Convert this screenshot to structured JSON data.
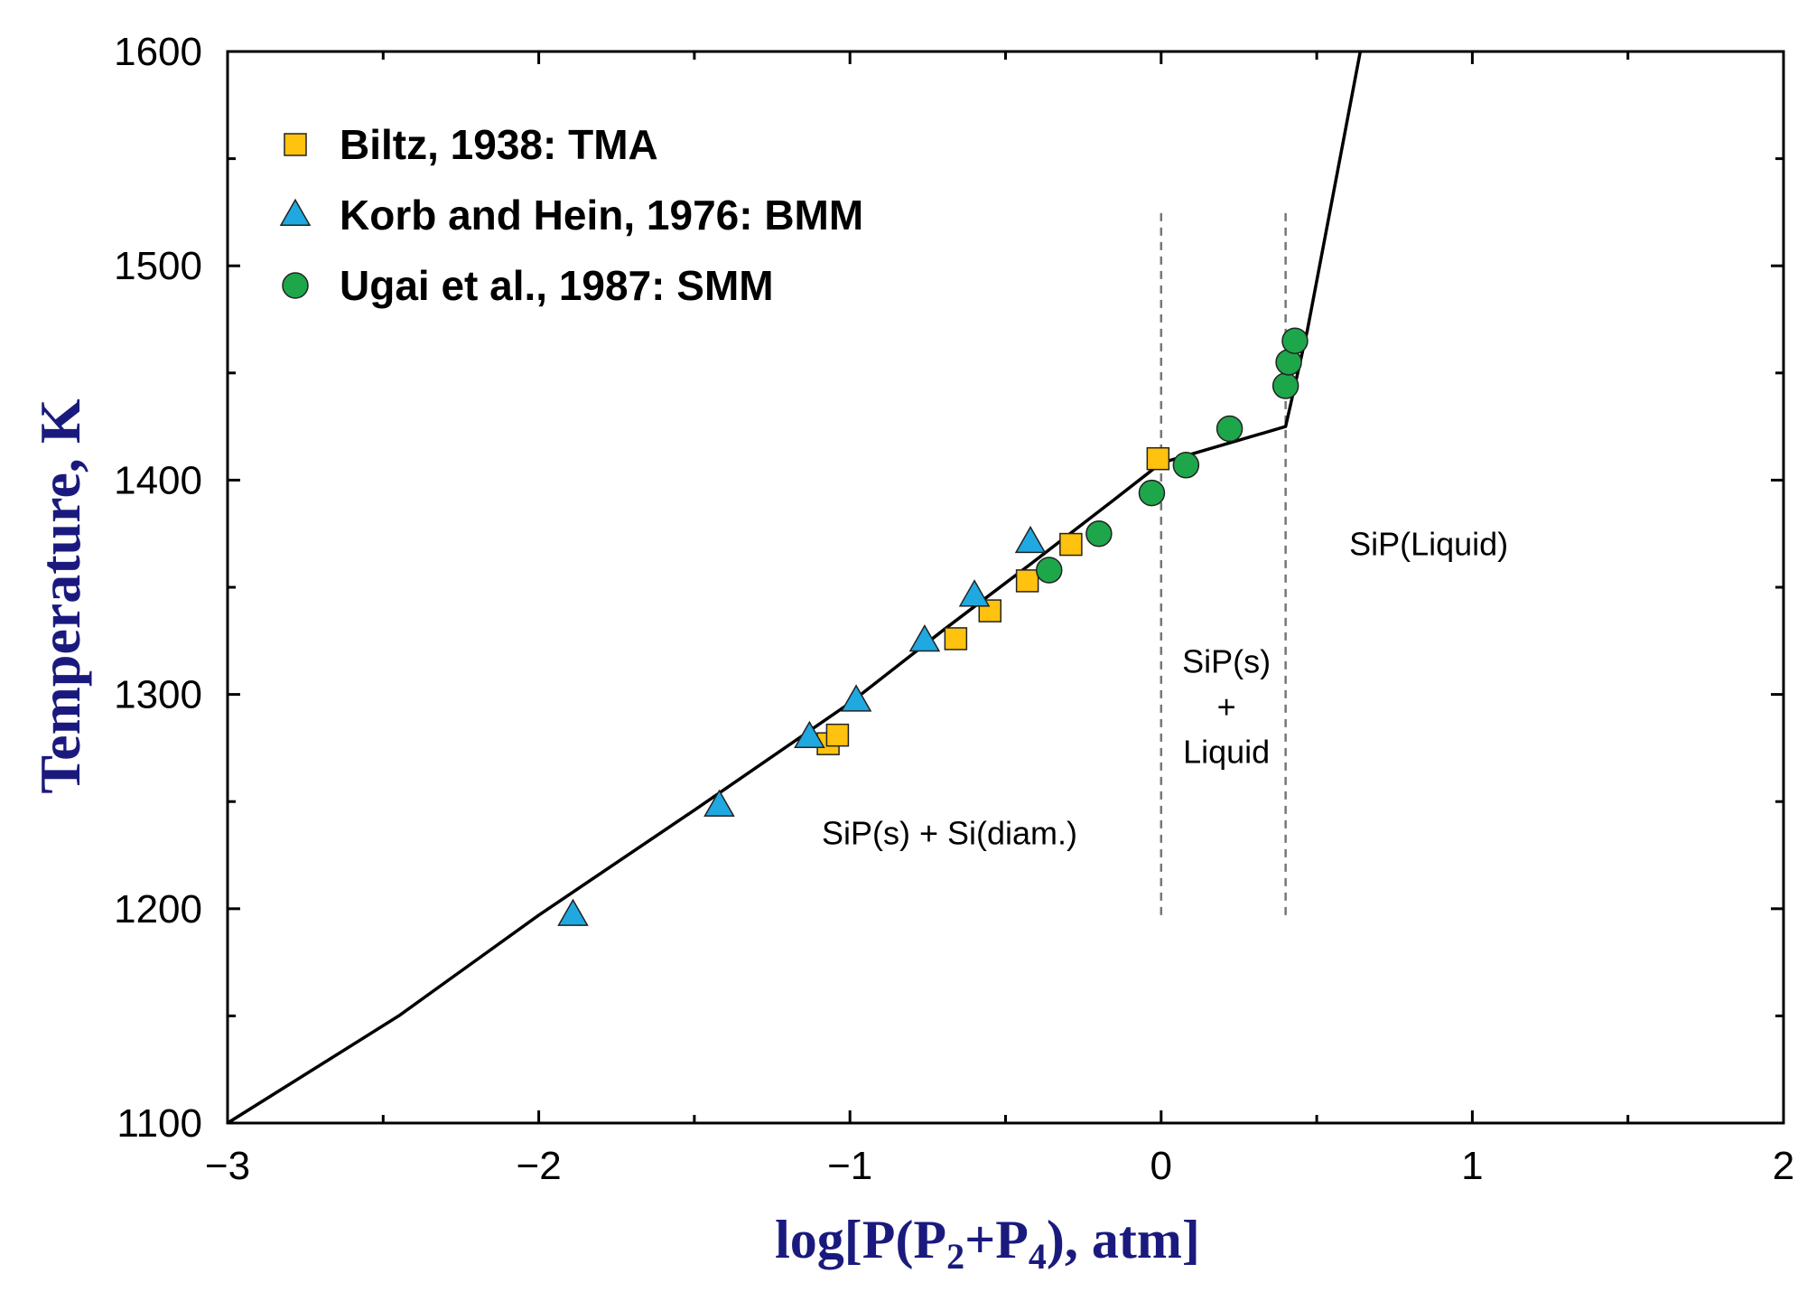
{
  "chart_data": {
    "type": "scatter",
    "title": "",
    "xlabel": {
      "prefix": "log[P(P",
      "sub1": "2",
      "middle": "+P",
      "sub2": "4",
      "suffix": "), atm]"
    },
    "ylabel": "Temperature, K",
    "xlim": [
      -3,
      2
    ],
    "ylim": [
      1100,
      1600
    ],
    "x_ticks": [
      -3,
      -2,
      -1,
      0,
      1,
      2
    ],
    "x_tick_labels": [
      "−3",
      "−2",
      "−1",
      "0",
      "1",
      "2"
    ],
    "y_ticks": [
      1100,
      1200,
      1300,
      1400,
      1500,
      1600
    ],
    "y_tick_labels": [
      "1100",
      "1200",
      "1300",
      "1400",
      "1500",
      "1600"
    ],
    "legend_position": "top-left",
    "colors": {
      "square": "#FFC20E",
      "triangle": "#1FA9E0",
      "circle": "#1EA64A",
      "axis_title": "#1a1a7e"
    },
    "series": [
      {
        "name": "Biltz, 1938: TMA",
        "marker": "square",
        "points": [
          [
            -1.07,
            1277
          ],
          [
            -1.04,
            1281
          ],
          [
            -0.66,
            1326
          ],
          [
            -0.55,
            1339
          ],
          [
            -0.43,
            1353
          ],
          [
            -0.29,
            1370
          ],
          [
            -0.01,
            1410
          ]
        ]
      },
      {
        "name": "Korb and Hein, 1976: BMM",
        "marker": "triangle",
        "points": [
          [
            -1.89,
            1197
          ],
          [
            -1.42,
            1248
          ],
          [
            -1.13,
            1280
          ],
          [
            -0.98,
            1297
          ],
          [
            -0.76,
            1325
          ],
          [
            -0.6,
            1346
          ],
          [
            -0.42,
            1371
          ]
        ]
      },
      {
        "name": "Ugai et al., 1987: SMM",
        "marker": "circle",
        "points": [
          [
            -0.36,
            1358
          ],
          [
            -0.2,
            1375
          ],
          [
            -0.03,
            1394
          ],
          [
            0.08,
            1407
          ],
          [
            0.22,
            1424
          ],
          [
            0.4,
            1444
          ],
          [
            0.41,
            1455
          ],
          [
            0.43,
            1465
          ]
        ]
      }
    ],
    "phase_boundary": [
      [
        -3,
        1100
      ],
      [
        -2.45,
        1150
      ],
      [
        -2.0,
        1197
      ],
      [
        -1.5,
        1246
      ],
      [
        -1.0,
        1296
      ],
      [
        -0.7,
        1330
      ],
      [
        -0.4,
        1363
      ],
      [
        -0.15,
        1391
      ],
      [
        0,
        1408
      ],
      [
        0.4,
        1425
      ],
      [
        0.47,
        1470
      ],
      [
        0.64,
        1600
      ]
    ],
    "dashed_lines": [
      {
        "x": 0,
        "y_range": [
          1197,
          1527
        ]
      },
      {
        "x": 0.4,
        "y_range": [
          1197,
          1527
        ]
      }
    ],
    "annotations": [
      {
        "id": "sisi",
        "lines": [
          "SiP(s) + Si(diam.)"
        ],
        "x": -0.68,
        "y": 1230
      },
      {
        "id": "sipliq",
        "lines": [
          "SiP(s)",
          "+",
          "Liquid"
        ],
        "x": 0.21,
        "y": 1290
      },
      {
        "id": "liquid",
        "lines": [
          "SiP(Liquid)"
        ],
        "x": 0.86,
        "y": 1365
      }
    ]
  }
}
